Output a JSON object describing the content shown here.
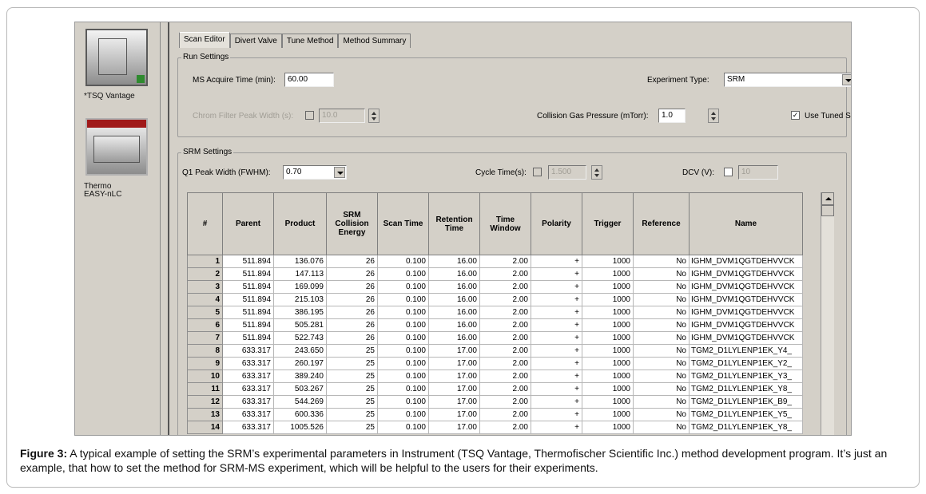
{
  "instruments": [
    {
      "label": "*TSQ Vantage"
    },
    {
      "label_line1": "Thermo",
      "label_line2": "EASY-nLC"
    }
  ],
  "tabs": [
    "Scan Editor",
    "Divert Valve",
    "Tune Method",
    "Method Summary"
  ],
  "run_settings": {
    "title": "Run Settings",
    "ms_acquire_label": "MS Acquire Time (min):",
    "ms_acquire_value": "60.00",
    "experiment_type_label": "Experiment Type:",
    "experiment_type_value": "SRM",
    "chrom_filter_label": "Chrom Filter Peak Width (s):",
    "chrom_filter_value": "10.0",
    "collision_gas_label": "Collision Gas Pressure (mTorr):",
    "collision_gas_value": "1.0",
    "use_tuned_label": "Use Tuned S-Lens Value",
    "use_tuned_check": "✓"
  },
  "srm_settings": {
    "title": "SRM Settings",
    "q1_label": "Q1 Peak Width (FWHM):",
    "q1_value": "0.70",
    "cycle_label": "Cycle Time(s):",
    "cycle_value": "1.500",
    "dcv_label": "DCV (V):",
    "dcv_value": "10"
  },
  "table": {
    "columns": [
      "#",
      "Parent",
      "Product",
      "SRM Collision Energy",
      "Scan Time",
      "Retention Time",
      "Time Window",
      "Polarity",
      "Trigger",
      "Reference",
      "Name"
    ],
    "rows": [
      [
        "1",
        "511.894",
        "136.076",
        "26",
        "0.100",
        "16.00",
        "2.00",
        "+",
        "1000",
        "No",
        "IGHM_DVM1QGTDEHVVCK"
      ],
      [
        "2",
        "511.894",
        "147.113",
        "26",
        "0.100",
        "16.00",
        "2.00",
        "+",
        "1000",
        "No",
        "IGHM_DVM1QGTDEHVVCK"
      ],
      [
        "3",
        "511.894",
        "169.099",
        "26",
        "0.100",
        "16.00",
        "2.00",
        "+",
        "1000",
        "No",
        "IGHM_DVM1QGTDEHVVCK"
      ],
      [
        "4",
        "511.894",
        "215.103",
        "26",
        "0.100",
        "16.00",
        "2.00",
        "+",
        "1000",
        "No",
        "IGHM_DVM1QGTDEHVVCK"
      ],
      [
        "5",
        "511.894",
        "386.195",
        "26",
        "0.100",
        "16.00",
        "2.00",
        "+",
        "1000",
        "No",
        "IGHM_DVM1QGTDEHVVCK"
      ],
      [
        "6",
        "511.894",
        "505.281",
        "26",
        "0.100",
        "16.00",
        "2.00",
        "+",
        "1000",
        "No",
        "IGHM_DVM1QGTDEHVVCK"
      ],
      [
        "7",
        "511.894",
        "522.743",
        "26",
        "0.100",
        "16.00",
        "2.00",
        "+",
        "1000",
        "No",
        "IGHM_DVM1QGTDEHVVCK"
      ],
      [
        "8",
        "633.317",
        "243.650",
        "25",
        "0.100",
        "17.00",
        "2.00",
        "+",
        "1000",
        "No",
        "TGM2_D1LYLENP1EK_Y4_"
      ],
      [
        "9",
        "633.317",
        "260.197",
        "25",
        "0.100",
        "17.00",
        "2.00",
        "+",
        "1000",
        "No",
        "TGM2_D1LYLENP1EK_Y2_"
      ],
      [
        "10",
        "633.317",
        "389.240",
        "25",
        "0.100",
        "17.00",
        "2.00",
        "+",
        "1000",
        "No",
        "TGM2_D1LYLENP1EK_Y3_"
      ],
      [
        "11",
        "633.317",
        "503.267",
        "25",
        "0.100",
        "17.00",
        "2.00",
        "+",
        "1000",
        "No",
        "TGM2_D1LYLENP1EK_Y8_"
      ],
      [
        "12",
        "633.317",
        "544.269",
        "25",
        "0.100",
        "17.00",
        "2.00",
        "+",
        "1000",
        "No",
        "TGM2_D1LYLENP1EK_B9_"
      ],
      [
        "13",
        "633.317",
        "600.336",
        "25",
        "0.100",
        "17.00",
        "2.00",
        "+",
        "1000",
        "No",
        "TGM2_D1LYLENP1EK_Y5_"
      ],
      [
        "14",
        "633.317",
        "1005.526",
        "25",
        "0.100",
        "17.00",
        "2.00",
        "+",
        "1000",
        "No",
        "TGM2_D1LYLENP1EK_Y8_"
      ]
    ]
  },
  "caption": {
    "label": "Figure 3:",
    "text": " A typical example of setting the SRM’s experimental parameters in Instrument (TSQ Vantage, Thermofischer Scientific Inc.) method development program. It’s just an example, that how to set the method for SRM-MS experiment, which will be helpful to the users for their experiments."
  }
}
